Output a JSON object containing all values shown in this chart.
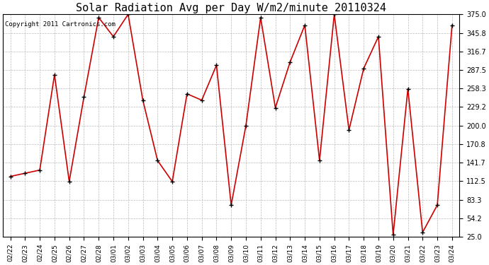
{
  "title": "Solar Radiation Avg per Day W/m2/minute 20110324",
  "copyright_text": "Copyright 2011 Cartronics.com",
  "dates": [
    "02/22",
    "02/23",
    "02/24",
    "02/25",
    "02/26",
    "02/27",
    "02/28",
    "03/01",
    "03/02",
    "03/03",
    "03/04",
    "03/05",
    "03/06",
    "03/07",
    "03/08",
    "03/09",
    "03/10",
    "03/11",
    "03/12",
    "03/13",
    "03/14",
    "03/15",
    "03/16",
    "03/17",
    "03/18",
    "03/19",
    "03/20",
    "03/21",
    "03/22",
    "03/23",
    "03/24"
  ],
  "values": [
    120,
    125,
    130,
    280,
    112,
    245,
    370,
    340,
    375,
    240,
    145,
    112,
    250,
    240,
    295,
    75,
    200,
    370,
    228,
    300,
    358,
    145,
    375,
    193,
    290,
    340,
    28,
    258,
    32,
    75,
    358
  ],
  "line_color": "#cc0000",
  "marker_color": "#000000",
  "marker_size": 5,
  "background_color": "#ffffff",
  "grid_color": "#bbbbbb",
  "ylim": [
    25.0,
    375.0
  ],
  "yticks": [
    25.0,
    54.2,
    83.3,
    112.5,
    141.7,
    170.8,
    200.0,
    229.2,
    258.3,
    287.5,
    316.7,
    345.8,
    375.0
  ],
  "title_fontsize": 11,
  "copyright_fontsize": 6.5,
  "tick_fontsize": 7,
  "xlabel_fontsize": 6.5
}
